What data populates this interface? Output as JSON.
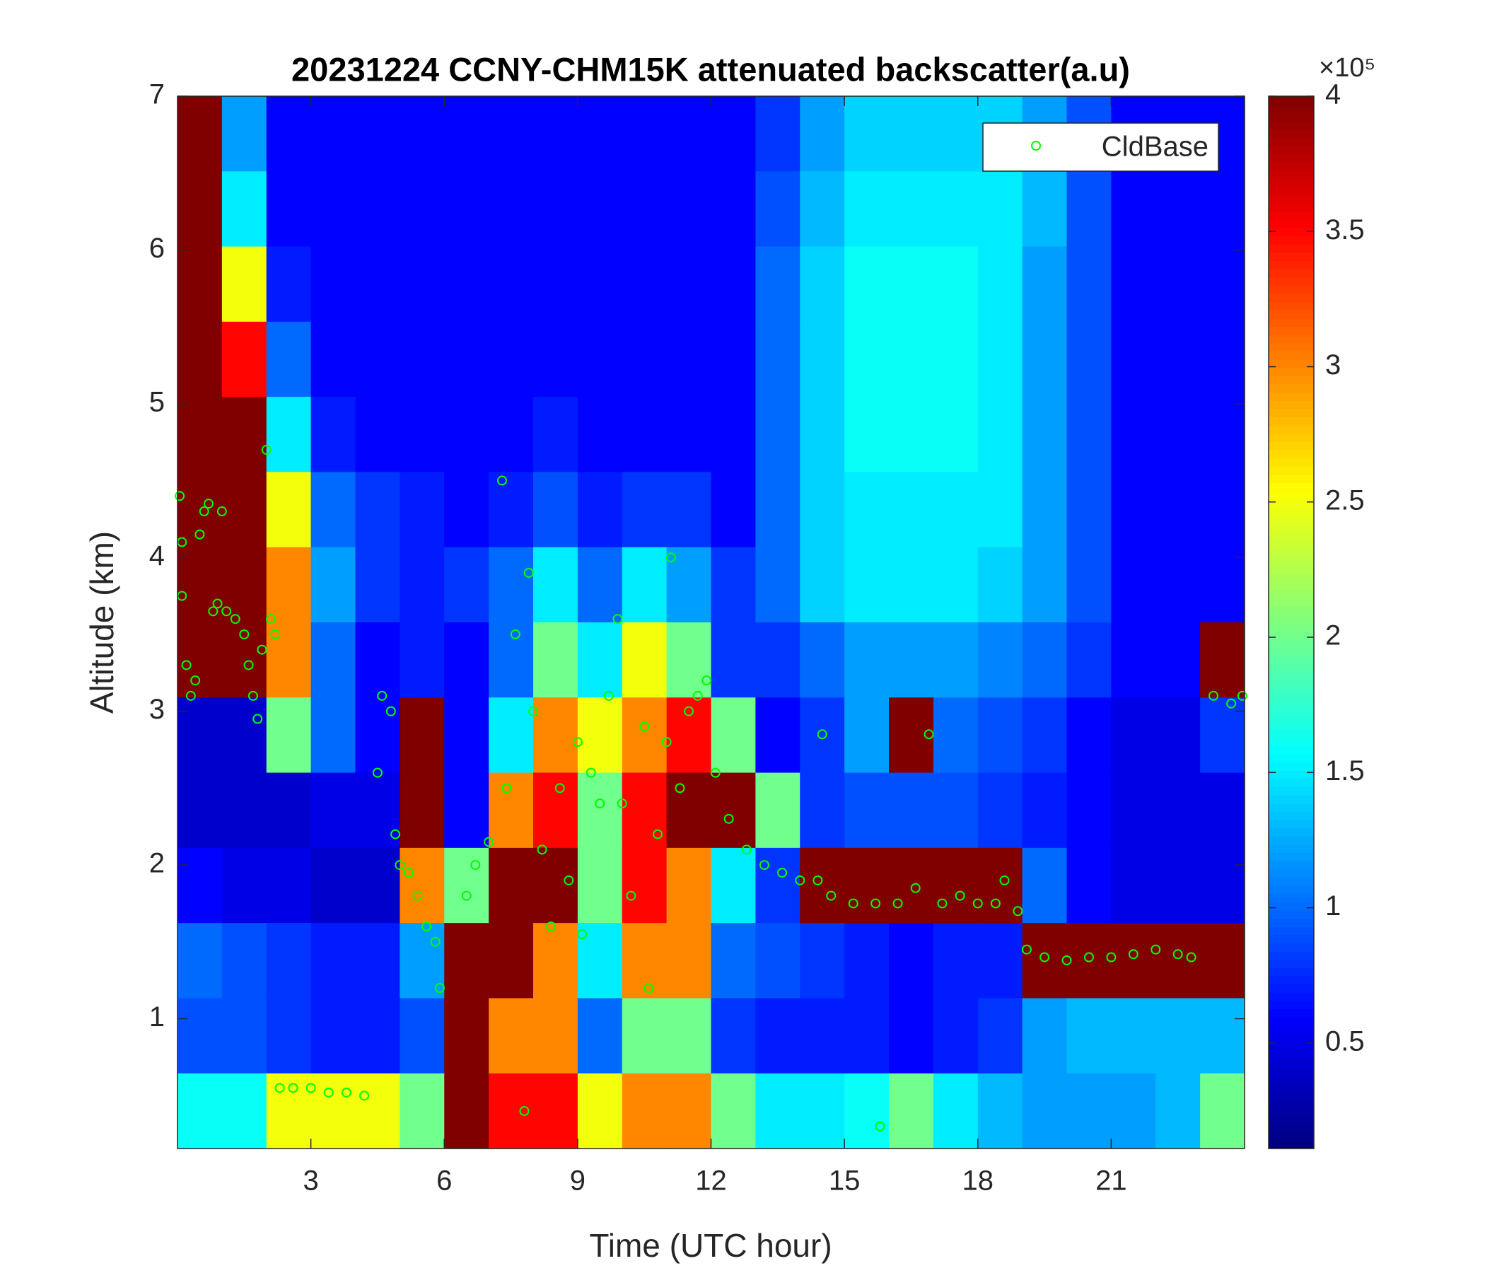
{
  "chart_data": {
    "type": "heatmap",
    "title": "20231224 CCNY-CHM15K attenuated backscatter(a.u)",
    "xlabel": "Time (UTC hour)",
    "ylabel": "Altitude (km)",
    "xlim": [
      0,
      24
    ],
    "ylim": [
      0.156,
      7
    ],
    "xticks": [
      3,
      6,
      9,
      12,
      15,
      18,
      21
    ],
    "yticks": [
      1,
      2,
      3,
      4,
      5,
      6,
      7
    ],
    "colormap": "jet",
    "clim": [
      0.11,
      4
    ],
    "cticks": [
      0.5,
      1,
      1.5,
      2,
      2.5,
      3,
      3.5,
      4
    ],
    "colorbar_exponent": "×10⁵",
    "z": [
      [
        4,
        1.2,
        0.6,
        0.6,
        0.6,
        0.6,
        0.6,
        0.6,
        0.6,
        0.6,
        0.6,
        0.6,
        0.6,
        0.8,
        1.2,
        1.4,
        1.4,
        1.4,
        1.4,
        1.2,
        0.9,
        0.6,
        0.6,
        0.6
      ],
      [
        4,
        1.5,
        0.6,
        0.6,
        0.6,
        0.6,
        0.6,
        0.6,
        0.6,
        0.6,
        0.6,
        0.6,
        0.6,
        0.9,
        1.3,
        1.5,
        1.5,
        1.5,
        1.5,
        1.3,
        0.9,
        0.6,
        0.6,
        0.6
      ],
      [
        4,
        2.5,
        0.7,
        0.6,
        0.6,
        0.6,
        0.6,
        0.6,
        0.6,
        0.6,
        0.6,
        0.6,
        0.6,
        1.0,
        1.4,
        1.6,
        1.6,
        1.6,
        1.5,
        1.2,
        0.9,
        0.6,
        0.6,
        0.6
      ],
      [
        4,
        3.5,
        1.0,
        0.6,
        0.6,
        0.6,
        0.6,
        0.6,
        0.6,
        0.6,
        0.6,
        0.6,
        0.6,
        1.0,
        1.4,
        1.6,
        1.6,
        1.6,
        1.5,
        1.2,
        0.9,
        0.6,
        0.6,
        0.6
      ],
      [
        4,
        4,
        1.5,
        0.7,
        0.6,
        0.6,
        0.6,
        0.6,
        0.7,
        0.6,
        0.6,
        0.6,
        0.6,
        1.0,
        1.4,
        1.6,
        1.6,
        1.6,
        1.5,
        1.2,
        0.9,
        0.6,
        0.6,
        0.6
      ],
      [
        4,
        4,
        2.5,
        1.0,
        0.8,
        0.7,
        0.6,
        0.7,
        0.9,
        0.7,
        0.8,
        0.8,
        0.6,
        1.0,
        1.4,
        1.5,
        1.5,
        1.5,
        1.5,
        1.2,
        0.9,
        0.6,
        0.6,
        0.6
      ],
      [
        4,
        4,
        3,
        1.2,
        0.8,
        0.7,
        0.8,
        1,
        1.5,
        1,
        1.5,
        1.2,
        0.8,
        1,
        1.4,
        1.5,
        1.5,
        1.5,
        1.4,
        1.2,
        0.9,
        0.6,
        0.6,
        0.6
      ],
      [
        4,
        4,
        3,
        1,
        0.6,
        0.7,
        0.6,
        1,
        2,
        1.5,
        2.5,
        2,
        0.8,
        0.8,
        1,
        1.2,
        1.2,
        1.2,
        1.1,
        1,
        0.8,
        0.6,
        0.6,
        4
      ],
      [
        0.4,
        0.4,
        2,
        1,
        0.6,
        4,
        0.6,
        1.5,
        3,
        2.5,
        3,
        3.5,
        2,
        0.6,
        0.8,
        1.2,
        4,
        1,
        0.9,
        0.8,
        0.6,
        0.5,
        0.5,
        0.8
      ],
      [
        0.4,
        0.4,
        0.4,
        0.5,
        0.5,
        4,
        0.6,
        3,
        3.5,
        2,
        3.5,
        4,
        4,
        2,
        0.8,
        0.9,
        0.9,
        0.9,
        0.8,
        0.7,
        0.6,
        0.5,
        0.5,
        0.5
      ],
      [
        0.6,
        0.5,
        0.5,
        0.4,
        0.4,
        3,
        2,
        4,
        4,
        2,
        3.5,
        3,
        1.5,
        0.8,
        4,
        4,
        4,
        4,
        4,
        1,
        0.6,
        0.5,
        0.5,
        0.5
      ],
      [
        1,
        0.9,
        0.8,
        0.7,
        0.7,
        1.2,
        4,
        4,
        3,
        1.5,
        3,
        3,
        1,
        0.9,
        0.8,
        0.7,
        0.6,
        0.7,
        0.7,
        4,
        4,
        4,
        4,
        4
      ],
      [
        0.9,
        0.9,
        0.8,
        0.7,
        0.7,
        0.9,
        4,
        3,
        3,
        1,
        2,
        2,
        0.8,
        0.7,
        0.7,
        0.7,
        0.6,
        0.7,
        0.8,
        1.2,
        1.3,
        1.3,
        1.3,
        1.3
      ],
      [
        1.6,
        1.6,
        2.5,
        2.5,
        2.5,
        2,
        4,
        3.5,
        3.5,
        2.5,
        3,
        3,
        2,
        1.5,
        1.5,
        1.6,
        2,
        1.5,
        1.3,
        1.2,
        1.2,
        1.2,
        1.3,
        2
      ]
    ],
    "legend": "upper right",
    "series": [
      {
        "name": "CldBase",
        "type": "scatter",
        "color": "#00ff00",
        "x": [
          0.05,
          0.1,
          0.1,
          0.2,
          0.3,
          0.4,
          0.5,
          0.6,
          0.7,
          0.8,
          0.9,
          1.0,
          1.1,
          1.3,
          1.5,
          1.6,
          1.7,
          1.8,
          1.9,
          2.0,
          2.1,
          2.2,
          2.3,
          2.6,
          3.0,
          3.4,
          3.8,
          4.2,
          4.5,
          4.6,
          4.8,
          4.9,
          5.0,
          5.2,
          5.4,
          5.6,
          5.8,
          5.9,
          6.5,
          6.7,
          7.0,
          7.3,
          7.4,
          7.6,
          7.8,
          7.9,
          8.0,
          8.2,
          8.4,
          8.6,
          8.8,
          9.0,
          9.1,
          9.3,
          9.5,
          9.7,
          9.9,
          10.0,
          10.2,
          10.5,
          10.6,
          10.8,
          11.0,
          11.1,
          11.3,
          11.5,
          11.7,
          11.9,
          12.1,
          12.4,
          12.8,
          13.2,
          13.6,
          14.0,
          14.4,
          14.5,
          14.7,
          15.2,
          15.7,
          15.8,
          16.2,
          16.6,
          16.9,
          17.2,
          17.6,
          18.0,
          18.4,
          18.6,
          18.9,
          19.1,
          19.5,
          20.0,
          20.5,
          21.0,
          21.5,
          22.0,
          22.5,
          22.8,
          23.3,
          23.7,
          23.95
        ],
        "values": [
          4.4,
          4.1,
          3.75,
          3.3,
          3.1,
          3.2,
          4.15,
          4.3,
          4.35,
          3.65,
          3.7,
          4.3,
          3.65,
          3.6,
          3.5,
          3.3,
          3.1,
          2.95,
          3.4,
          4.7,
          3.6,
          3.5,
          0.55,
          0.55,
          0.55,
          0.52,
          0.52,
          0.5,
          2.6,
          3.1,
          3.0,
          2.2,
          2.0,
          1.95,
          1.8,
          1.6,
          1.5,
          1.2,
          1.8,
          2.0,
          2.15,
          4.5,
          2.5,
          3.5,
          0.4,
          3.9,
          3.0,
          2.1,
          1.6,
          2.5,
          1.9,
          2.8,
          1.55,
          2.6,
          2.4,
          3.1,
          3.6,
          2.4,
          1.8,
          2.9,
          1.2,
          2.2,
          2.8,
          4.0,
          2.5,
          3.0,
          3.1,
          3.2,
          2.6,
          2.3,
          2.1,
          2.0,
          1.95,
          1.9,
          1.9,
          2.85,
          1.8,
          1.75,
          1.75,
          0.3,
          1.75,
          1.85,
          2.85,
          1.75,
          1.8,
          1.75,
          1.75,
          1.9,
          1.7,
          1.45,
          1.4,
          1.38,
          1.4,
          1.4,
          1.42,
          1.45,
          1.42,
          1.4,
          3.1,
          3.05,
          3.1
        ]
      }
    ]
  }
}
